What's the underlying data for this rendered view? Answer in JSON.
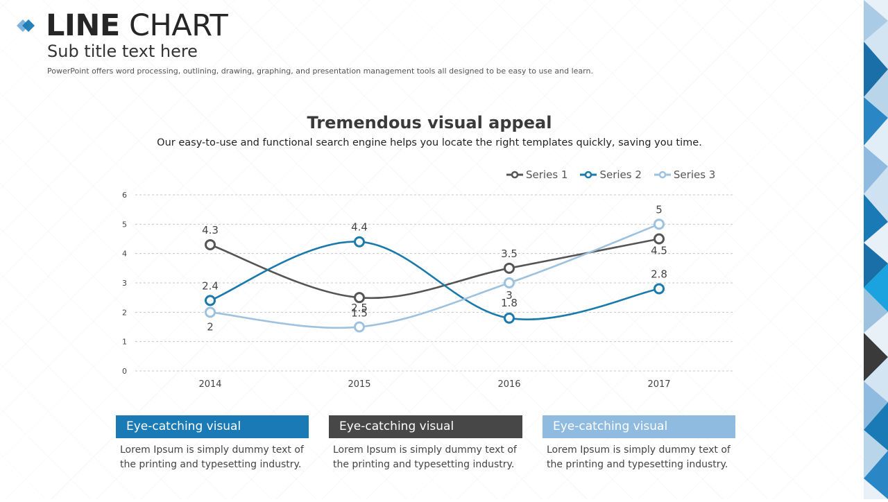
{
  "header": {
    "title_bold": "LINE",
    "title_light": "CHART",
    "subtitle": "Sub title text here",
    "description": "PowerPoint offers word processing, outlining, drawing, graphing, and presentation management tools all designed to be easy to use and learn."
  },
  "colors": {
    "series1": "#555555",
    "series2": "#1a7aab",
    "series3": "#9cc2e0",
    "card1": "#1a7ab5",
    "card2": "#474747",
    "card3": "#8fbbe0",
    "grid": "#c8c8c8"
  },
  "chart_data": {
    "type": "line",
    "title": "Tremendous visual appeal",
    "subtitle": "Our easy-to-use and functional search engine helps you locate the right templates quickly, saving you time.",
    "categories": [
      "2014",
      "2015",
      "2016",
      "2017"
    ],
    "ylim": [
      0,
      6
    ],
    "yticks": [
      "0",
      "1",
      "2",
      "3",
      "4",
      "5",
      "6"
    ],
    "grid": true,
    "legend_position": "top-right",
    "series": [
      {
        "name": "Series 1",
        "values": [
          4.3,
          2.5,
          3.5,
          4.5
        ],
        "labels": [
          "4.3",
          "2.5",
          "3.5",
          "4.5"
        ]
      },
      {
        "name": "Series 2",
        "values": [
          2.4,
          4.4,
          1.8,
          2.8
        ],
        "labels": [
          "2.4",
          "4.4",
          "1.8",
          "2.8"
        ]
      },
      {
        "name": "Series 3",
        "values": [
          2,
          1.5,
          3,
          5
        ],
        "labels": [
          "2",
          "1.5",
          "3",
          "5"
        ]
      }
    ]
  },
  "cards": [
    {
      "heading": "Eye-catching visual",
      "body": "Lorem Ipsum is simply dummy text of the printing and typesetting industry."
    },
    {
      "heading": "Eye-catching visual",
      "body": "Lorem Ipsum is simply dummy text of the printing and typesetting industry."
    },
    {
      "heading": "Eye-catching visual",
      "body": "Lorem Ipsum is simply dummy text of the printing and typesetting industry."
    }
  ]
}
